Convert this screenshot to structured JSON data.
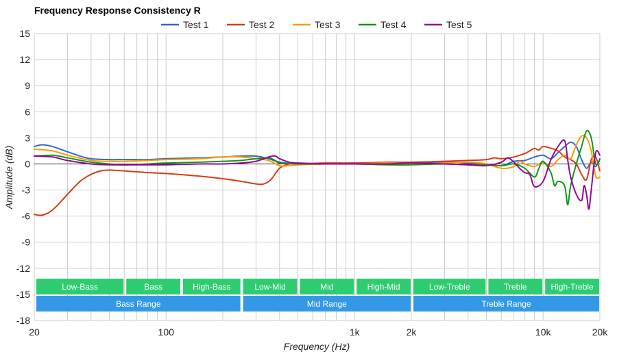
{
  "chart_data": {
    "type": "line",
    "title": "Frequency Response Consistency R",
    "xlabel": "Frequency (Hz)",
    "ylabel": "Amplitude (dB)",
    "x_scale": "log",
    "xlim": [
      20,
      20000
    ],
    "ylim": [
      -18,
      15
    ],
    "grid": true,
    "legend_position": "top",
    "x_tick_labels": [
      {
        "value": 20,
        "label": "20"
      },
      {
        "value": 100,
        "label": "100"
      },
      {
        "value": 1000,
        "label": "1k"
      },
      {
        "value": 2000,
        "label": "2k"
      },
      {
        "value": 10000,
        "label": "10k"
      },
      {
        "value": 20000,
        "label": "20k"
      }
    ],
    "y_ticks": [
      15,
      12,
      9,
      6,
      3,
      0,
      -3,
      -6,
      -9,
      -12,
      -15,
      -18
    ],
    "bands": [
      {
        "row": "upper",
        "label": "Low-Bass",
        "from": 20,
        "to": 60,
        "color": "#2ecc71"
      },
      {
        "row": "upper",
        "label": "Bass",
        "from": 60,
        "to": 120,
        "color": "#2ecc71"
      },
      {
        "row": "upper",
        "label": "High-Bass",
        "from": 120,
        "to": 250,
        "color": "#2ecc71"
      },
      {
        "row": "upper",
        "label": "Low-Mid",
        "from": 250,
        "to": 500,
        "color": "#2ecc71"
      },
      {
        "row": "upper",
        "label": "Mid",
        "from": 500,
        "to": 1000,
        "color": "#2ecc71"
      },
      {
        "row": "upper",
        "label": "High-Mid",
        "from": 1000,
        "to": 2000,
        "color": "#2ecc71"
      },
      {
        "row": "upper",
        "label": "Low-Treble",
        "from": 2000,
        "to": 5000,
        "color": "#2ecc71"
      },
      {
        "row": "upper",
        "label": "Treble",
        "from": 5000,
        "to": 10000,
        "color": "#2ecc71"
      },
      {
        "row": "upper",
        "label": "High-Treble",
        "from": 10000,
        "to": 20000,
        "color": "#2ecc71"
      },
      {
        "row": "lower",
        "label": "Bass Range",
        "from": 20,
        "to": 250,
        "color": "#3399e6"
      },
      {
        "row": "lower",
        "label": "Mid Range",
        "from": 250,
        "to": 2000,
        "color": "#3399e6"
      },
      {
        "row": "lower",
        "label": "Treble Range",
        "from": 2000,
        "to": 20000,
        "color": "#3399e6"
      }
    ],
    "series": [
      {
        "name": "Test 1",
        "color": "#3366cc",
        "points": [
          [
            20,
            2.0
          ],
          [
            22,
            2.2
          ],
          [
            25,
            2.0
          ],
          [
            30,
            1.4
          ],
          [
            35,
            0.9
          ],
          [
            40,
            0.6
          ],
          [
            50,
            0.5
          ],
          [
            60,
            0.5
          ],
          [
            80,
            0.5
          ],
          [
            100,
            0.6
          ],
          [
            150,
            0.7
          ],
          [
            200,
            0.8
          ],
          [
            250,
            0.9
          ],
          [
            300,
            0.9
          ],
          [
            350,
            0.6
          ],
          [
            400,
            0.2
          ],
          [
            500,
            0.0
          ],
          [
            700,
            0.0
          ],
          [
            1000,
            0.1
          ],
          [
            1500,
            0.0
          ],
          [
            2000,
            0.1
          ],
          [
            3000,
            0.2
          ],
          [
            4000,
            0.1
          ],
          [
            5000,
            0.0
          ],
          [
            6000,
            -0.2
          ],
          [
            7000,
            0.3
          ],
          [
            8000,
            0.4
          ],
          [
            9000,
            0.8
          ],
          [
            10000,
            1.0
          ],
          [
            11000,
            0.6
          ],
          [
            12000,
            1.3
          ],
          [
            13000,
            2.0
          ],
          [
            14000,
            2.5
          ],
          [
            15000,
            2.0
          ],
          [
            16000,
            0.5
          ],
          [
            17000,
            -0.5
          ],
          [
            18000,
            0.2
          ],
          [
            19000,
            -0.3
          ],
          [
            20000,
            0.6
          ]
        ]
      },
      {
        "name": "Test 2",
        "color": "#dc3912",
        "points": [
          [
            20,
            -5.8
          ],
          [
            22,
            -5.9
          ],
          [
            25,
            -5.3
          ],
          [
            30,
            -3.5
          ],
          [
            35,
            -2.0
          ],
          [
            40,
            -1.2
          ],
          [
            45,
            -0.8
          ],
          [
            50,
            -0.7
          ],
          [
            60,
            -0.8
          ],
          [
            80,
            -1.0
          ],
          [
            100,
            -1.1
          ],
          [
            150,
            -1.4
          ],
          [
            200,
            -1.7
          ],
          [
            250,
            -2.0
          ],
          [
            300,
            -2.3
          ],
          [
            330,
            -2.3
          ],
          [
            360,
            -1.8
          ],
          [
            400,
            -0.5
          ],
          [
            450,
            0.0
          ],
          [
            500,
            0.0
          ],
          [
            700,
            0.1
          ],
          [
            1000,
            0.1
          ],
          [
            1500,
            0.2
          ],
          [
            2000,
            0.2
          ],
          [
            3000,
            0.3
          ],
          [
            4000,
            0.4
          ],
          [
            5000,
            0.5
          ],
          [
            5500,
            0.7
          ],
          [
            6000,
            0.6
          ],
          [
            7000,
            0.8
          ],
          [
            8000,
            1.2
          ],
          [
            8500,
            1.5
          ],
          [
            9000,
            1.8
          ],
          [
            9500,
            1.6
          ],
          [
            10000,
            2.0
          ],
          [
            11000,
            1.8
          ],
          [
            12000,
            1.5
          ],
          [
            13000,
            0.8
          ],
          [
            14000,
            0.5
          ],
          [
            15000,
            0.0
          ],
          [
            16000,
            -1.2
          ],
          [
            17000,
            -1.8
          ],
          [
            18000,
            0.5
          ],
          [
            19000,
            0.8
          ],
          [
            20000,
            -0.8
          ]
        ]
      },
      {
        "name": "Test 3",
        "color": "#ff9900",
        "points": [
          [
            20,
            1.7
          ],
          [
            25,
            1.5
          ],
          [
            30,
            1.0
          ],
          [
            40,
            0.4
          ],
          [
            50,
            0.3
          ],
          [
            60,
            0.3
          ],
          [
            80,
            0.4
          ],
          [
            100,
            0.5
          ],
          [
            150,
            0.6
          ],
          [
            200,
            0.8
          ],
          [
            250,
            0.8
          ],
          [
            300,
            0.6
          ],
          [
            350,
            0.4
          ],
          [
            400,
            -0.2
          ],
          [
            450,
            -0.2
          ],
          [
            500,
            -0.1
          ],
          [
            700,
            0.0
          ],
          [
            1000,
            0.0
          ],
          [
            1500,
            0.1
          ],
          [
            2000,
            0.0
          ],
          [
            3000,
            0.1
          ],
          [
            4000,
            0.2
          ],
          [
            5000,
            0.0
          ],
          [
            6000,
            -0.5
          ],
          [
            7000,
            -0.3
          ],
          [
            7500,
            0.3
          ],
          [
            8000,
            0.0
          ],
          [
            9000,
            -0.3
          ],
          [
            10000,
            0.2
          ],
          [
            11000,
            -0.3
          ],
          [
            12000,
            0.5
          ],
          [
            13000,
            1.0
          ],
          [
            14000,
            0.6
          ],
          [
            15000,
            2.2
          ],
          [
            16000,
            3.2
          ],
          [
            17000,
            3.0
          ],
          [
            18000,
            1.5
          ],
          [
            19000,
            -1.4
          ],
          [
            20000,
            -1.5
          ]
        ]
      },
      {
        "name": "Test 4",
        "color": "#109618",
        "points": [
          [
            20,
            0.9
          ],
          [
            25,
            1.0
          ],
          [
            30,
            0.7
          ],
          [
            40,
            0.2
          ],
          [
            50,
            0.0
          ],
          [
            60,
            -0.1
          ],
          [
            80,
            0.0
          ],
          [
            100,
            0.1
          ],
          [
            150,
            0.2
          ],
          [
            200,
            0.3
          ],
          [
            250,
            0.4
          ],
          [
            300,
            0.6
          ],
          [
            350,
            0.7
          ],
          [
            380,
            0.4
          ],
          [
            400,
            0.1
          ],
          [
            500,
            0.0
          ],
          [
            700,
            0.0
          ],
          [
            1000,
            0.0
          ],
          [
            1500,
            -0.1
          ],
          [
            2000,
            -0.1
          ],
          [
            3000,
            0.0
          ],
          [
            4000,
            -0.1
          ],
          [
            5000,
            -0.1
          ],
          [
            6000,
            -0.2
          ],
          [
            7000,
            0.0
          ],
          [
            8000,
            -0.5
          ],
          [
            9000,
            -1.5
          ],
          [
            9500,
            -0.5
          ],
          [
            10000,
            0.3
          ],
          [
            11000,
            -1.0
          ],
          [
            11500,
            -2.5
          ],
          [
            12000,
            -2.0
          ],
          [
            13000,
            -2.5
          ],
          [
            13500,
            -4.7
          ],
          [
            14000,
            -2.5
          ],
          [
            15000,
            0.0
          ],
          [
            16000,
            2.0
          ],
          [
            17000,
            3.8
          ],
          [
            18000,
            3.0
          ],
          [
            19000,
            0.0
          ],
          [
            20000,
            0.5
          ]
        ]
      },
      {
        "name": "Test 5",
        "color": "#990099",
        "points": [
          [
            20,
            0.9
          ],
          [
            25,
            0.8
          ],
          [
            30,
            0.4
          ],
          [
            40,
            0.0
          ],
          [
            50,
            -0.1
          ],
          [
            60,
            -0.1
          ],
          [
            80,
            -0.1
          ],
          [
            100,
            -0.1
          ],
          [
            150,
            0.0
          ],
          [
            200,
            0.0
          ],
          [
            250,
            0.1
          ],
          [
            300,
            0.3
          ],
          [
            350,
            0.8
          ],
          [
            380,
            0.9
          ],
          [
            400,
            0.6
          ],
          [
            450,
            0.2
          ],
          [
            500,
            0.1
          ],
          [
            700,
            0.0
          ],
          [
            1000,
            0.0
          ],
          [
            1500,
            0.0
          ],
          [
            2000,
            0.1
          ],
          [
            3000,
            0.0
          ],
          [
            4000,
            -0.1
          ],
          [
            5000,
            -0.2
          ],
          [
            6000,
            0.2
          ],
          [
            6500,
            0.7
          ],
          [
            7000,
            0.2
          ],
          [
            7500,
            -0.5
          ],
          [
            8000,
            -1.0
          ],
          [
            8500,
            -1.2
          ],
          [
            9000,
            -2.6
          ],
          [
            10000,
            -2.0
          ],
          [
            11000,
            0.5
          ],
          [
            12000,
            2.0
          ],
          [
            13000,
            2.7
          ],
          [
            13500,
            0.5
          ],
          [
            14000,
            -1.5
          ],
          [
            15000,
            -3.5
          ],
          [
            16000,
            -4.2
          ],
          [
            16500,
            -2.5
          ],
          [
            17000,
            -3.5
          ],
          [
            17500,
            -5.2
          ],
          [
            18000,
            -3.0
          ],
          [
            19000,
            1.3
          ],
          [
            20000,
            1.0
          ]
        ]
      }
    ]
  }
}
